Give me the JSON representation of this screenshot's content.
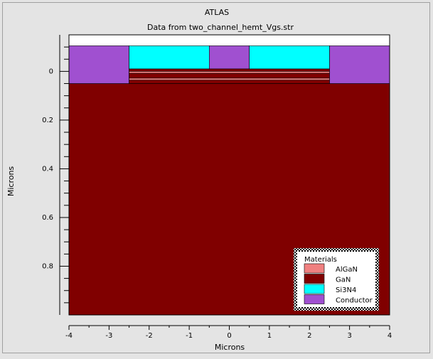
{
  "chart_data": {
    "type": "structure",
    "title": "ATLAS",
    "subtitle": "Data from two_channel_hemt_Vgs.str",
    "xlabel": "Microns",
    "ylabel": "Microns",
    "xlim": [
      -4,
      4
    ],
    "ylim": [
      -0.15,
      1.0
    ],
    "y_inverted": true,
    "xticks": [
      -4,
      -3,
      -2,
      -1,
      0,
      1,
      2,
      3,
      4
    ],
    "xminorticks": [
      -3.5,
      -2.5,
      -1.5,
      -0.5,
      0.5,
      1.5,
      2.5,
      3.5
    ],
    "yticks": [
      0,
      0.2,
      0.4,
      0.6,
      0.8
    ],
    "yminorticks": [
      -0.1,
      -0.05,
      0.05,
      0.1,
      0.15,
      0.25,
      0.3,
      0.35,
      0.45,
      0.5,
      0.55,
      0.65,
      0.7,
      0.75,
      0.85,
      0.9,
      0.95
    ],
    "legend_title": "Materials",
    "legend_position": "lower right",
    "materials": [
      {
        "name": "AlGaN",
        "color": "#f08080"
      },
      {
        "name": "GaN",
        "color": "#800000"
      },
      {
        "name": "Si3N4",
        "color": "#00ffff"
      },
      {
        "name": "Conductor",
        "color": "#a050d0"
      }
    ],
    "regions": [
      {
        "material": 1,
        "x": [
          -4,
          4
        ],
        "y": [
          0.05,
          1.0
        ]
      },
      {
        "material": 3,
        "x": [
          -4,
          -2.5
        ],
        "y": [
          -0.105,
          0.05
        ]
      },
      {
        "material": 3,
        "x": [
          2.5,
          4
        ],
        "y": [
          -0.105,
          0.05
        ]
      },
      {
        "material": 2,
        "x": [
          -2.5,
          -0.5
        ],
        "y": [
          -0.105,
          -0.01
        ]
      },
      {
        "material": 3,
        "x": [
          -0.5,
          0.5
        ],
        "y": [
          -0.105,
          -0.01
        ]
      },
      {
        "material": 2,
        "x": [
          0.5,
          2.5
        ],
        "y": [
          -0.105,
          -0.01
        ]
      },
      {
        "material": 1,
        "x": [
          -2.5,
          2.5
        ],
        "y": [
          -0.01,
          0.0
        ]
      },
      {
        "material": 0,
        "x": [
          -2.5,
          2.5
        ],
        "y": [
          0.0,
          0.008
        ]
      },
      {
        "material": 1,
        "x": [
          -2.5,
          2.5
        ],
        "y": [
          0.008,
          0.028
        ]
      },
      {
        "material": 0,
        "x": [
          -2.5,
          2.5
        ],
        "y": [
          0.028,
          0.036
        ]
      },
      {
        "material": 1,
        "x": [
          -2.5,
          2.5
        ],
        "y": [
          0.036,
          0.05
        ]
      }
    ]
  }
}
